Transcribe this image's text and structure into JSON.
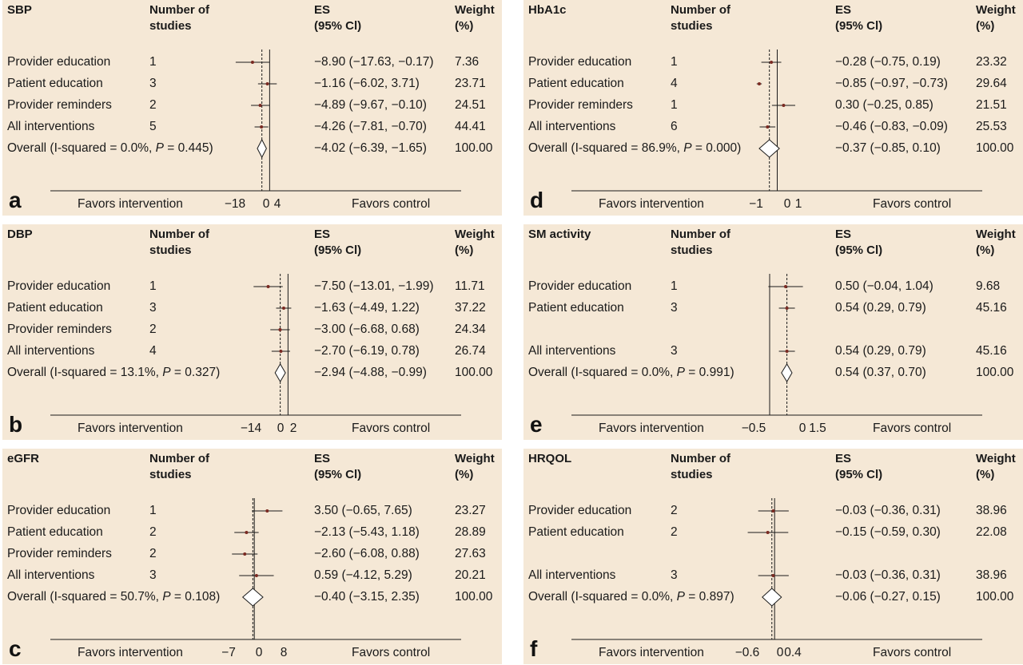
{
  "colors": {
    "panel_bg": "#f5e8d6",
    "point": "#7a2a22",
    "line": "#1a1a1a"
  },
  "panels": [
    {
      "letter": "a",
      "title": "SBP",
      "header_studies": [
        "Number of",
        "studies"
      ],
      "header_es": [
        "ES",
        "(95% Cl)"
      ],
      "header_weight": [
        "Weight",
        "(%)"
      ],
      "favors_intervention": "Favors intervention",
      "favors_control": "Favors control",
      "ticks": [
        {
          "v": -18,
          "label": "−18"
        },
        {
          "v": 0,
          "label": "0"
        },
        {
          "v": 4,
          "label": "4"
        }
      ],
      "overall_label_pre": "Overall (I-squared = 0.0%, ",
      "overall_p_label": "P",
      "overall_label_post": " = 0.445)",
      "overall": {
        "es": -4.02,
        "lo": -6.39,
        "hi": -1.65,
        "text": "−4.02 (−6.39, −1.65)",
        "weight": "100.00"
      },
      "studies": [
        {
          "label": "Provider education",
          "n": "1",
          "es": -8.9,
          "lo": -17.63,
          "hi": -0.17,
          "text": "−8.90 (−17.63, −0.17)",
          "weight": "7.36",
          "slot": 0
        },
        {
          "label": "Patient education",
          "n": "3",
          "es": -1.16,
          "lo": -6.02,
          "hi": 3.71,
          "text": "−1.16 (−6.02, 3.71)",
          "weight": "23.71",
          "slot": 1
        },
        {
          "label": "Provider reminders",
          "n": "2",
          "es": -4.89,
          "lo": -9.67,
          "hi": -0.1,
          "text": "−4.89 (−9.67, −0.10)",
          "weight": "24.51",
          "slot": 2
        },
        {
          "label": "All interventions",
          "n": "5",
          "es": -4.26,
          "lo": -7.81,
          "hi": -0.7,
          "text": "−4.26 (−7.81, −0.70)",
          "weight": "44.41",
          "slot": 3
        }
      ]
    },
    {
      "letter": "d",
      "title": "HbA1c",
      "header_studies": [
        "Number of",
        "studies"
      ],
      "header_es": [
        "ES",
        "(95% Cl)"
      ],
      "header_weight": [
        "Weight",
        "(%)"
      ],
      "favors_intervention": "Favors intervention",
      "favors_control": "Favors control",
      "ticks": [
        {
          "v": -1,
          "label": "−1"
        },
        {
          "v": 0,
          "label": "0"
        },
        {
          "v": 1,
          "label": "1"
        }
      ],
      "overall_label_pre": "Overall (I-squared = 86.9%, ",
      "overall_p_label": "P",
      "overall_label_post": " = 0.000)",
      "overall": {
        "es": -0.37,
        "lo": -0.85,
        "hi": 0.1,
        "text": "−0.37 (−0.85, 0.10)",
        "weight": "100.00"
      },
      "studies": [
        {
          "label": "Provider education",
          "n": "1",
          "es": -0.28,
          "lo": -0.75,
          "hi": 0.19,
          "text": "−0.28 (−0.75, 0.19)",
          "weight": "23.32",
          "slot": 0
        },
        {
          "label": "Patient education",
          "n": "4",
          "es": -0.85,
          "lo": -0.97,
          "hi": -0.73,
          "text": "−0.85 (−0.97, −0.73)",
          "weight": "29.64",
          "slot": 1
        },
        {
          "label": "Provider reminders",
          "n": "1",
          "es": 0.3,
          "lo": -0.25,
          "hi": 0.85,
          "text": "0.30 (−0.25, 0.85)",
          "weight": "21.51",
          "slot": 2
        },
        {
          "label": "All interventions",
          "n": "6",
          "es": -0.46,
          "lo": -0.83,
          "hi": -0.09,
          "text": "−0.46 (−0.83, −0.09)",
          "weight": "25.53",
          "slot": 3
        }
      ]
    },
    {
      "letter": "b",
      "title": "DBP",
      "header_studies": [
        "Number of",
        "studies"
      ],
      "header_es": [
        "ES",
        "(95% Cl)"
      ],
      "header_weight": [
        "Weight",
        "(%)"
      ],
      "favors_intervention": "Favors intervention",
      "favors_control": "Favors control",
      "ticks": [
        {
          "v": -14,
          "label": "−14"
        },
        {
          "v": 0,
          "label": "0"
        },
        {
          "v": 2,
          "label": "2"
        }
      ],
      "overall_label_pre": "Overall (I-squared = 13.1%, ",
      "overall_p_label": "P",
      "overall_label_post": " = 0.327)",
      "overall": {
        "es": -2.94,
        "lo": -4.88,
        "hi": -0.99,
        "text": "−2.94 (−4.88, −0.99)",
        "weight": "100.00"
      },
      "studies": [
        {
          "label": "Provider education",
          "n": "1",
          "es": -7.5,
          "lo": -13.01,
          "hi": -1.99,
          "text": "−7.50 (−13.01, −1.99)",
          "weight": "11.71",
          "slot": 0
        },
        {
          "label": "Patient education",
          "n": "3",
          "es": -1.63,
          "lo": -4.49,
          "hi": 1.22,
          "text": "−1.63 (−4.49, 1.22)",
          "weight": "37.22",
          "slot": 1
        },
        {
          "label": "Provider reminders",
          "n": "2",
          "es": -3.0,
          "lo": -6.68,
          "hi": 0.68,
          "text": "−3.00 (−6.68, 0.68)",
          "weight": "24.34",
          "slot": 2
        },
        {
          "label": "All interventions",
          "n": "4",
          "es": -2.7,
          "lo": -6.19,
          "hi": 0.78,
          "text": "−2.70 (−6.19, 0.78)",
          "weight": "26.74",
          "slot": 3
        }
      ]
    },
    {
      "letter": "e",
      "title": "SM activity",
      "header_studies": [
        "Number of",
        "studies"
      ],
      "header_es": [
        "ES",
        "(95% Cl)"
      ],
      "header_weight": [
        "Weight",
        "(%)"
      ],
      "favors_intervention": "Favors intervention",
      "favors_control": "Favors control",
      "ticks": [
        {
          "v": -0.5,
          "label": "−0.5"
        },
        {
          "v": 0,
          "label": "0"
        },
        {
          "v": 1.5,
          "label": "1.5"
        }
      ],
      "overall_label_pre": "Overall (I-squared = 0.0%, ",
      "overall_p_label": "P",
      "overall_label_post": " = 0.991)",
      "overall": {
        "es": 0.54,
        "lo": 0.37,
        "hi": 0.7,
        "text": "0.54 (0.37, 0.70)",
        "weight": "100.00"
      },
      "studies": [
        {
          "label": "Provider education",
          "n": "1",
          "es": 0.5,
          "lo": -0.04,
          "hi": 1.04,
          "text": "0.50 (−0.04, 1.04)",
          "weight": "9.68",
          "slot": 0
        },
        {
          "label": "Patient education",
          "n": "3",
          "es": 0.54,
          "lo": 0.29,
          "hi": 0.79,
          "text": "0.54 (0.29, 0.79)",
          "weight": "45.16",
          "slot": 1
        },
        {
          "label": "All interventions",
          "n": "3",
          "es": 0.54,
          "lo": 0.29,
          "hi": 0.79,
          "text": "0.54 (0.29, 0.79)",
          "weight": "45.16",
          "slot": 3
        }
      ]
    },
    {
      "letter": "c",
      "title": "eGFR",
      "header_studies": [
        "Number of",
        "studies"
      ],
      "header_es": [
        "ES",
        "(95% Cl)"
      ],
      "header_weight": [
        "Weight",
        "(%)"
      ],
      "favors_intervention": "Favors intervention",
      "favors_control": "Favors control",
      "ticks": [
        {
          "v": -7,
          "label": "−7"
        },
        {
          "v": 0,
          "label": "0"
        },
        {
          "v": 8,
          "label": "8"
        }
      ],
      "overall_label_pre": "Overall (I-squared = 50.7%, ",
      "overall_p_label": "P",
      "overall_label_post": " = 0.108)",
      "overall": {
        "es": -0.4,
        "lo": -3.15,
        "hi": 2.35,
        "text": "−0.40 (−3.15, 2.35)",
        "weight": "100.00"
      },
      "studies": [
        {
          "label": "Provider education",
          "n": "1",
          "es": 3.5,
          "lo": -0.65,
          "hi": 7.65,
          "text": "3.50 (−0.65, 7.65)",
          "weight": "23.27",
          "slot": 0
        },
        {
          "label": "Patient education",
          "n": "2",
          "es": -2.13,
          "lo": -5.43,
          "hi": 1.18,
          "text": "−2.13 (−5.43, 1.18)",
          "weight": "28.89",
          "slot": 1
        },
        {
          "label": "Provider reminders",
          "n": "2",
          "es": -2.6,
          "lo": -6.08,
          "hi": 0.88,
          "text": "−2.60 (−6.08, 0.88)",
          "weight": "27.63",
          "slot": 2
        },
        {
          "label": "All interventions",
          "n": "3",
          "es": 0.59,
          "lo": -4.12,
          "hi": 5.29,
          "text": "0.59 (−4.12, 5.29)",
          "weight": "20.21",
          "slot": 3
        }
      ]
    },
    {
      "letter": "f",
      "title": "HRQOL",
      "header_studies": [
        "Number of",
        "studies"
      ],
      "header_es": [
        "ES",
        "(95% Cl)"
      ],
      "header_weight": [
        "Weight",
        "(%)"
      ],
      "favors_intervention": "Favors intervention",
      "favors_control": "Favors control",
      "ticks": [
        {
          "v": -0.6,
          "label": "−0.6"
        },
        {
          "v": 0,
          "label": "0"
        },
        {
          "v": 0.4,
          "label": "0.4"
        }
      ],
      "overall_label_pre": "Overall (I-squared = 0.0%, ",
      "overall_p_label": "P",
      "overall_label_post": " = 0.897)",
      "overall": {
        "es": -0.06,
        "lo": -0.27,
        "hi": 0.15,
        "text": "−0.06 (−0.27, 0.15)",
        "weight": "100.00"
      },
      "studies": [
        {
          "label": "Provider education",
          "n": "2",
          "es": -0.03,
          "lo": -0.36,
          "hi": 0.31,
          "text": "−0.03 (−0.36, 0.31)",
          "weight": "38.96",
          "slot": 0
        },
        {
          "label": "Patient education",
          "n": "2",
          "es": -0.15,
          "lo": -0.59,
          "hi": 0.3,
          "text": "−0.15 (−0.59, 0.30)",
          "weight": "22.08",
          "slot": 1
        },
        {
          "label": "All interventions",
          "n": "3",
          "es": -0.03,
          "lo": -0.36,
          "hi": 0.31,
          "text": "−0.03 (−0.36, 0.31)",
          "weight": "38.96",
          "slot": 3
        }
      ]
    }
  ],
  "chart_data": [
    {
      "type": "forest",
      "panel": "a",
      "title": "SBP",
      "null_value": 0,
      "xlim": [
        -18,
        4
      ],
      "categories": [
        "Provider education",
        "Patient education",
        "Provider reminders",
        "All interventions",
        "Overall"
      ],
      "studies_n": [
        1,
        3,
        2,
        5,
        null
      ],
      "es": [
        -8.9,
        -1.16,
        -4.89,
        -4.26,
        -4.02
      ],
      "ci_low": [
        -17.63,
        -6.02,
        -9.67,
        -7.81,
        -6.39
      ],
      "ci_high": [
        -0.17,
        3.71,
        -0.1,
        -0.7,
        -1.65
      ],
      "weight": [
        7.36,
        23.71,
        24.51,
        44.41,
        100.0
      ],
      "i_squared": "0.0%",
      "p": 0.445
    },
    {
      "type": "forest",
      "panel": "b",
      "title": "DBP",
      "null_value": 0,
      "xlim": [
        -14,
        2
      ],
      "categories": [
        "Provider education",
        "Patient education",
        "Provider reminders",
        "All interventions",
        "Overall"
      ],
      "studies_n": [
        1,
        3,
        2,
        4,
        null
      ],
      "es": [
        -7.5,
        -1.63,
        -3.0,
        -2.7,
        -2.94
      ],
      "ci_low": [
        -13.01,
        -4.49,
        -6.68,
        -6.19,
        -4.88
      ],
      "ci_high": [
        -1.99,
        1.22,
        0.68,
        0.78,
        -0.99
      ],
      "weight": [
        11.71,
        37.22,
        24.34,
        26.74,
        100.0
      ],
      "i_squared": "13.1%",
      "p": 0.327
    },
    {
      "type": "forest",
      "panel": "c",
      "title": "eGFR",
      "null_value": 0,
      "xlim": [
        -7,
        8
      ],
      "categories": [
        "Provider education",
        "Patient education",
        "Provider reminders",
        "All interventions",
        "Overall"
      ],
      "studies_n": [
        1,
        2,
        2,
        3,
        null
      ],
      "es": [
        3.5,
        -2.13,
        -2.6,
        0.59,
        -0.4
      ],
      "ci_low": [
        -0.65,
        -5.43,
        -6.08,
        -4.12,
        -3.15
      ],
      "ci_high": [
        7.65,
        1.18,
        0.88,
        5.29,
        2.35
      ],
      "weight": [
        23.27,
        28.89,
        27.63,
        20.21,
        100.0
      ],
      "i_squared": "50.7%",
      "p": 0.108
    },
    {
      "type": "forest",
      "panel": "d",
      "title": "HbA1c",
      "null_value": 0,
      "xlim": [
        -1,
        1
      ],
      "categories": [
        "Provider education",
        "Patient education",
        "Provider reminders",
        "All interventions",
        "Overall"
      ],
      "studies_n": [
        1,
        4,
        1,
        6,
        null
      ],
      "es": [
        -0.28,
        -0.85,
        0.3,
        -0.46,
        -0.37
      ],
      "ci_low": [
        -0.75,
        -0.97,
        -0.25,
        -0.83,
        -0.85
      ],
      "ci_high": [
        0.19,
        -0.73,
        0.85,
        -0.09,
        0.1
      ],
      "weight": [
        23.32,
        29.64,
        21.51,
        25.53,
        100.0
      ],
      "i_squared": "86.9%",
      "p": 0.0
    },
    {
      "type": "forest",
      "panel": "e",
      "title": "SM activity",
      "null_value": 0,
      "xlim": [
        -0.5,
        1.5
      ],
      "categories": [
        "Provider education",
        "Patient education",
        "All interventions",
        "Overall"
      ],
      "studies_n": [
        1,
        3,
        3,
        null
      ],
      "es": [
        0.5,
        0.54,
        0.54,
        0.54
      ],
      "ci_low": [
        -0.04,
        0.29,
        0.29,
        0.37
      ],
      "ci_high": [
        1.04,
        0.79,
        0.79,
        0.7
      ],
      "weight": [
        9.68,
        45.16,
        45.16,
        100.0
      ],
      "i_squared": "0.0%",
      "p": 0.991
    },
    {
      "type": "forest",
      "panel": "f",
      "title": "HRQOL",
      "null_value": 0,
      "xlim": [
        -0.6,
        0.4
      ],
      "categories": [
        "Provider education",
        "Patient education",
        "All interventions",
        "Overall"
      ],
      "studies_n": [
        2,
        2,
        3,
        null
      ],
      "es": [
        -0.03,
        -0.15,
        -0.03,
        -0.06
      ],
      "ci_low": [
        -0.36,
        -0.59,
        -0.36,
        -0.27
      ],
      "ci_high": [
        0.31,
        0.3,
        0.31,
        0.15
      ],
      "weight": [
        38.96,
        22.08,
        38.96,
        100.0
      ],
      "i_squared": "0.0%",
      "p": 0.897
    }
  ]
}
